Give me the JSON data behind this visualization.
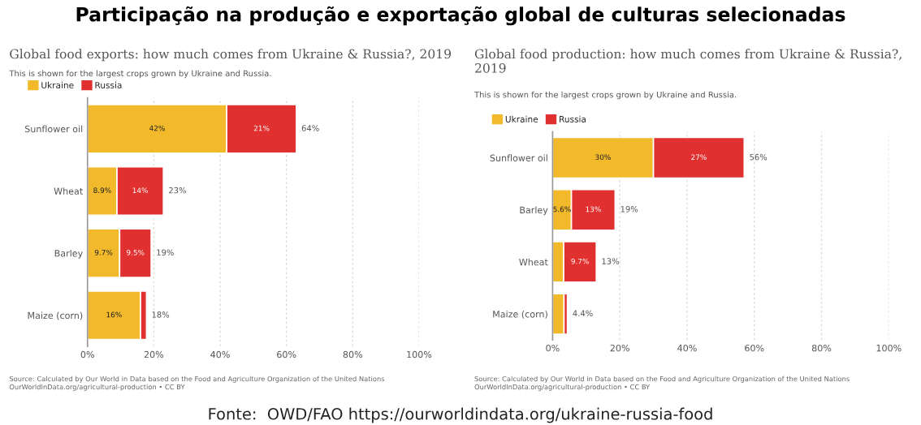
{
  "chart_data": [
    {
      "type": "bar",
      "orientation": "horizontal",
      "stacked": true,
      "title": "Global food exports: how much comes from Ukraine & Russia?, 2019",
      "subtitle": "This is shown for the largest crops grown by Ukraine and Russia.",
      "categories": [
        "Sunflower oil",
        "Wheat",
        "Barley",
        "Maize (corn)"
      ],
      "series": [
        {
          "name": "Ukraine",
          "color": "#f2b92b",
          "values": [
            42,
            8.9,
            9.7,
            16
          ],
          "value_labels": [
            "42%",
            "8.9%",
            "9.7%",
            "16%"
          ]
        },
        {
          "name": "Russia",
          "color": "#e0302f",
          "values": [
            21,
            14,
            9.5,
            1.8
          ],
          "value_labels": [
            "21%",
            "14%",
            "9.5%",
            null
          ]
        }
      ],
      "totals": [
        "64%",
        "23%",
        "19%",
        "18%"
      ],
      "xlim": [
        0,
        100
      ],
      "xticks": [
        {
          "value": 0,
          "label": "0%"
        },
        {
          "value": 20,
          "label": "20%"
        },
        {
          "value": 40,
          "label": "40%"
        },
        {
          "value": 60,
          "label": "60%"
        },
        {
          "value": 80,
          "label": "80%"
        },
        {
          "value": 100,
          "label": "100%"
        }
      ],
      "grid": "x",
      "legend": "top left",
      "annotations": [
        "Source: Calculated by Our World in Data based on the Food and Agriculture Organization of the United Nations\nOurWorldInData.org/agricultural-production • CC BY",
        "Participação na produção e exportação global de culturas selecionadas",
        "Fonte:  OWD/FAO https://ourworldindata.org/ukraine-russia-food"
      ]
    },
    {
      "type": "bar",
      "orientation": "horizontal",
      "stacked": true,
      "title": "Global food production: how much comes from Ukraine & Russia?,\n2019",
      "subtitle": "This is shown for the largest crops grown by Ukraine and Russia.",
      "categories": [
        "Sunflower oil",
        "Barley",
        "Wheat",
        "Maize (corn)"
      ],
      "series": [
        {
          "name": "Ukraine",
          "color": "#f2b92b",
          "values": [
            30,
            5.6,
            3.3,
            3.4
          ],
          "value_labels": [
            "30%",
            "5.6%",
            null,
            null
          ]
        },
        {
          "name": "Russia",
          "color": "#e0302f",
          "values": [
            27,
            13,
            9.7,
            1.0
          ],
          "value_labels": [
            "27%",
            "13%",
            "9.7%",
            null
          ]
        }
      ],
      "totals": [
        "56%",
        "19%",
        "13%",
        "4.4%"
      ],
      "xlim": [
        0,
        100
      ],
      "xticks": [
        {
          "value": 0,
          "label": "0%"
        },
        {
          "value": 20,
          "label": "20%"
        },
        {
          "value": 40,
          "label": "40%"
        },
        {
          "value": 60,
          "label": "60%"
        },
        {
          "value": 80,
          "label": "80%"
        },
        {
          "value": 100,
          "label": "100%"
        }
      ],
      "grid": "x",
      "legend": "top left",
      "annotations": [
        "Source: Calculated by Our World in Data based on the Food and Agriculture Organization of the United Nations\nOurWorldInData.org/agricultural-production • CC BY"
      ]
    }
  ]
}
